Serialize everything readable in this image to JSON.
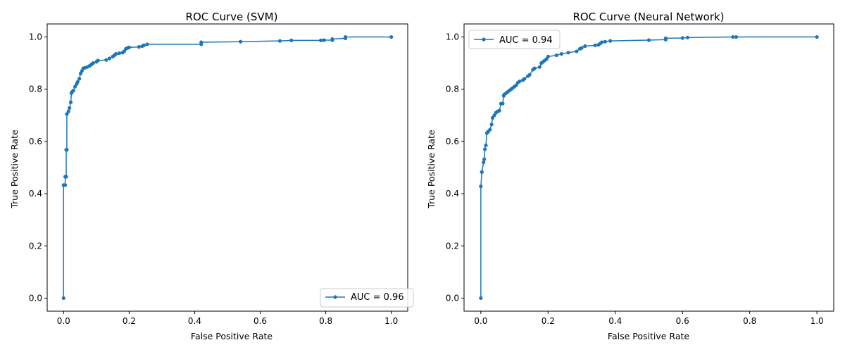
{
  "chart_data": [
    {
      "type": "line",
      "title": "ROC Curve (SVM)",
      "xlabel": "False Positive Rate",
      "ylabel": "True Positive Rate",
      "xlim": [
        -0.05,
        1.05
      ],
      "ylim": [
        -0.05,
        1.05
      ],
      "xticks": [
        "0.0",
        "0.2",
        "0.4",
        "0.6",
        "0.8",
        "1.0"
      ],
      "yticks": [
        "0.0",
        "0.2",
        "0.4",
        "0.6",
        "0.8",
        "1.0"
      ],
      "grid": false,
      "legend_position": "lower-right",
      "series": [
        {
          "name": "AUC = 0.96",
          "color": "#1f77b4",
          "marker": "circle",
          "x": [
            0.0,
            0.0,
            0.005,
            0.005,
            0.008,
            0.008,
            0.01,
            0.01,
            0.015,
            0.018,
            0.022,
            0.024,
            0.026,
            0.03,
            0.035,
            0.04,
            0.043,
            0.048,
            0.052,
            0.056,
            0.06,
            0.065,
            0.072,
            0.08,
            0.085,
            0.09,
            0.1,
            0.105,
            0.13,
            0.14,
            0.15,
            0.155,
            0.16,
            0.17,
            0.18,
            0.185,
            0.19,
            0.195,
            0.2,
            0.23,
            0.24,
            0.245,
            0.255,
            0.42,
            0.42,
            0.54,
            0.66,
            0.695,
            0.785,
            0.795,
            0.82,
            0.82,
            0.86,
            0.86,
            1.0
          ],
          "y": [
            0.0,
            0.433,
            0.433,
            0.465,
            0.465,
            0.568,
            0.568,
            0.705,
            0.715,
            0.728,
            0.75,
            0.785,
            0.79,
            0.795,
            0.81,
            0.82,
            0.828,
            0.84,
            0.86,
            0.87,
            0.88,
            0.882,
            0.885,
            0.89,
            0.895,
            0.9,
            0.905,
            0.91,
            0.912,
            0.918,
            0.925,
            0.93,
            0.935,
            0.938,
            0.94,
            0.945,
            0.955,
            0.958,
            0.96,
            0.962,
            0.965,
            0.968,
            0.972,
            0.972,
            0.98,
            0.982,
            0.985,
            0.987,
            0.987,
            0.988,
            0.988,
            0.992,
            0.995,
            1.0,
            1.0
          ]
        }
      ]
    },
    {
      "type": "line",
      "title": "ROC Curve (Neural Network)",
      "xlabel": "False Positive Rate",
      "ylabel": "True Positive Rate",
      "xlim": [
        -0.05,
        1.05
      ],
      "ylim": [
        -0.05,
        1.05
      ],
      "xticks": [
        "0.0",
        "0.2",
        "0.4",
        "0.6",
        "0.8",
        "1.0"
      ],
      "yticks": [
        "0.0",
        "0.2",
        "0.4",
        "0.6",
        "0.8",
        "1.0"
      ],
      "grid": false,
      "legend_position": "upper-left",
      "series": [
        {
          "name": "AUC = 0.94",
          "color": "#1f77b4",
          "marker": "circle",
          "x": [
            0.0,
            0.0,
            0.003,
            0.003,
            0.008,
            0.01,
            0.012,
            0.015,
            0.018,
            0.02,
            0.022,
            0.027,
            0.032,
            0.035,
            0.04,
            0.045,
            0.05,
            0.055,
            0.06,
            0.065,
            0.068,
            0.07,
            0.075,
            0.08,
            0.085,
            0.09,
            0.095,
            0.1,
            0.105,
            0.11,
            0.115,
            0.125,
            0.13,
            0.14,
            0.145,
            0.155,
            0.16,
            0.175,
            0.18,
            0.185,
            0.19,
            0.195,
            0.2,
            0.225,
            0.24,
            0.26,
            0.285,
            0.295,
            0.3,
            0.31,
            0.34,
            0.35,
            0.355,
            0.36,
            0.37,
            0.385,
            0.5,
            0.55,
            0.55,
            0.6,
            0.615,
            0.75,
            0.76,
            1.0
          ],
          "y": [
            0.0,
            0.428,
            0.483,
            0.483,
            0.52,
            0.532,
            0.57,
            0.585,
            0.632,
            0.635,
            0.638,
            0.645,
            0.665,
            0.69,
            0.7,
            0.71,
            0.715,
            0.718,
            0.745,
            0.745,
            0.775,
            0.78,
            0.785,
            0.79,
            0.795,
            0.8,
            0.805,
            0.81,
            0.815,
            0.825,
            0.83,
            0.835,
            0.84,
            0.85,
            0.855,
            0.875,
            0.88,
            0.885,
            0.9,
            0.905,
            0.91,
            0.915,
            0.925,
            0.93,
            0.935,
            0.94,
            0.945,
            0.955,
            0.958,
            0.965,
            0.968,
            0.97,
            0.975,
            0.98,
            0.982,
            0.985,
            0.988,
            0.99,
            0.995,
            0.996,
            0.998,
            1.0,
            1.0,
            1.0
          ]
        }
      ]
    }
  ]
}
